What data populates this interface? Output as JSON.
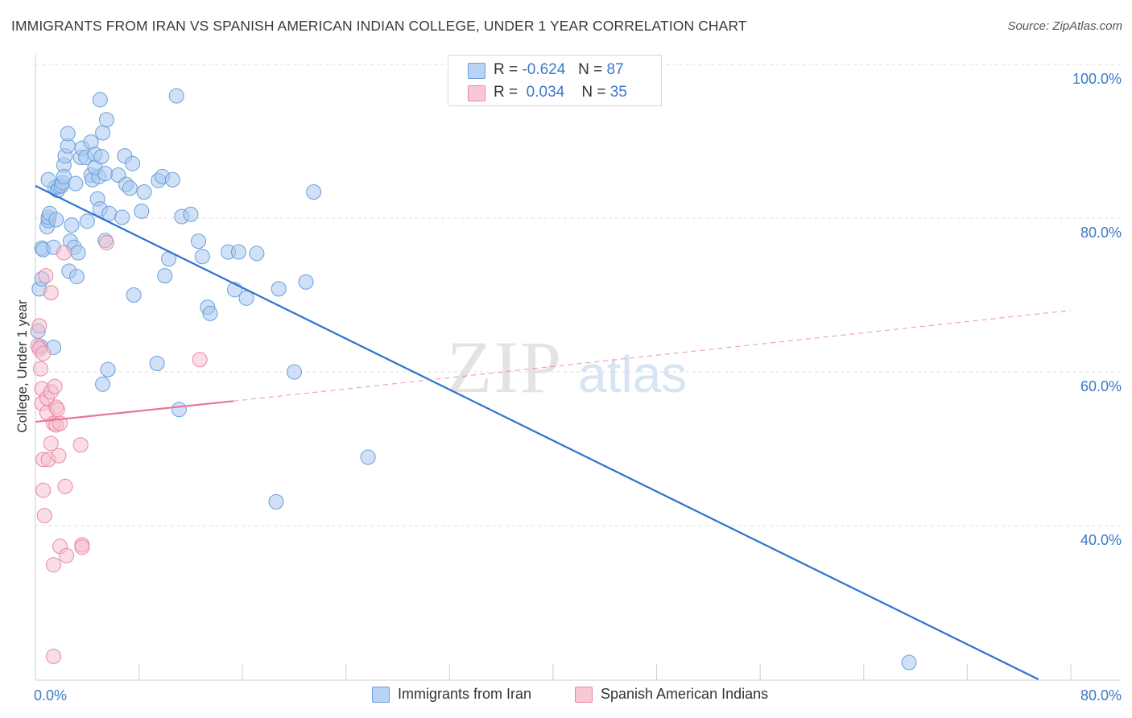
{
  "header": {
    "title": "IMMIGRANTS FROM IRAN VS SPANISH AMERICAN INDIAN COLLEGE, UNDER 1 YEAR CORRELATION CHART",
    "source": "Source: ZipAtlas.com"
  },
  "legend": {
    "series1": {
      "r_label": "R =",
      "r_value": "-0.624",
      "n_label": "N =",
      "n_value": "87"
    },
    "series2": {
      "r_label": "R =",
      "r_value": "0.034",
      "n_label": "N =",
      "n_value": "35"
    }
  },
  "colors": {
    "blue_fill": "#a9c8f0",
    "blue_stroke": "#6a9fd8",
    "blue_line": "#2d74d0",
    "pink_fill": "#f6bccd",
    "pink_stroke": "#e8899f",
    "pink_line": "#e8749a",
    "tick_label": "#3a78c9",
    "grid": "#dddddd"
  },
  "watermark": {
    "zip": "ZIP",
    "atlas": "atlas"
  },
  "chart_data": {
    "type": "scatter",
    "title": "IMMIGRANTS FROM IRAN VS SPANISH AMERICAN INDIAN COLLEGE, UNDER 1 YEAR CORRELATION CHART",
    "xlabel": "",
    "ylabel": "College, Under 1 year",
    "xlim": [
      0,
      80
    ],
    "ylim": [
      20,
      102
    ],
    "x_tick_labels": [
      "0.0%",
      "80.0%"
    ],
    "y_ticks": [
      40,
      60,
      80,
      100
    ],
    "y_tick_labels": [
      "40.0%",
      "60.0%",
      "80.0%",
      "100.0%"
    ],
    "grid": true,
    "legend_position": "top-center",
    "series": [
      {
        "name": "Immigrants from Iran",
        "color": "#a9c8f0",
        "R": -0.624,
        "N": 87,
        "trend": {
          "x": [
            0,
            77.5
          ],
          "y": [
            84.2,
            20
          ]
        },
        "points": [
          [
            0.2,
            65.3
          ],
          [
            0.4,
            63.3
          ],
          [
            0.3,
            70.8
          ],
          [
            0.5,
            72.1
          ],
          [
            0.5,
            76.1
          ],
          [
            0.6,
            75.9
          ],
          [
            0.9,
            78.9
          ],
          [
            1.0,
            79.7
          ],
          [
            1.0,
            80.1
          ],
          [
            1.1,
            80.6
          ],
          [
            1.4,
            76.2
          ],
          [
            1.5,
            84.0
          ],
          [
            1.7,
            83.6
          ],
          [
            1.8,
            84.1
          ],
          [
            1.4,
            63.2
          ],
          [
            1.6,
            79.8
          ],
          [
            2.0,
            84.2
          ],
          [
            2.1,
            84.6
          ],
          [
            2.2,
            86.9
          ],
          [
            2.3,
            88.1
          ],
          [
            2.2,
            85.4
          ],
          [
            2.5,
            89.4
          ],
          [
            2.7,
            77.0
          ],
          [
            2.6,
            73.1
          ],
          [
            2.8,
            79.1
          ],
          [
            3.0,
            76.2
          ],
          [
            3.1,
            84.5
          ],
          [
            3.2,
            72.4
          ],
          [
            3.3,
            75.5
          ],
          [
            3.5,
            87.9
          ],
          [
            3.6,
            89.1
          ],
          [
            3.9,
            87.9
          ],
          [
            4.0,
            79.6
          ],
          [
            4.3,
            89.9
          ],
          [
            4.3,
            85.6
          ],
          [
            4.4,
            85.0
          ],
          [
            4.6,
            88.3
          ],
          [
            4.8,
            82.5
          ],
          [
            4.9,
            85.4
          ],
          [
            4.6,
            86.6
          ],
          [
            5.0,
            81.2
          ],
          [
            5.1,
            88.0
          ],
          [
            5.0,
            95.4
          ],
          [
            5.2,
            91.1
          ],
          [
            5.5,
            92.8
          ],
          [
            5.4,
            77.1
          ],
          [
            5.4,
            85.8
          ],
          [
            5.2,
            58.4
          ],
          [
            5.7,
            80.6
          ],
          [
            5.6,
            60.3
          ],
          [
            6.4,
            85.6
          ],
          [
            6.7,
            80.1
          ],
          [
            7.0,
            84.4
          ],
          [
            6.9,
            88.1
          ],
          [
            7.5,
            87.1
          ],
          [
            7.3,
            83.9
          ],
          [
            7.6,
            70.0
          ],
          [
            8.2,
            80.9
          ],
          [
            8.4,
            83.4
          ],
          [
            9.4,
            61.1
          ],
          [
            9.5,
            84.9
          ],
          [
            9.8,
            85.4
          ],
          [
            10.0,
            72.5
          ],
          [
            10.3,
            74.7
          ],
          [
            10.6,
            85.0
          ],
          [
            10.9,
            95.9
          ],
          [
            11.1,
            55.1
          ],
          [
            11.3,
            80.2
          ],
          [
            12.0,
            80.5
          ],
          [
            12.6,
            77.0
          ],
          [
            12.9,
            75.0
          ],
          [
            13.3,
            68.4
          ],
          [
            13.5,
            67.6
          ],
          [
            14.9,
            75.6
          ],
          [
            15.4,
            70.7
          ],
          [
            15.7,
            75.6
          ],
          [
            16.3,
            69.6
          ],
          [
            17.1,
            75.4
          ],
          [
            18.8,
            70.8
          ],
          [
            18.6,
            43.1
          ],
          [
            20.0,
            60.0
          ],
          [
            20.9,
            71.7
          ],
          [
            21.5,
            83.4
          ],
          [
            25.7,
            48.9
          ],
          [
            67.5,
            22.2
          ],
          [
            1.0,
            85.0
          ],
          [
            2.5,
            91.0
          ]
        ]
      },
      {
        "name": "Spanish American Indians",
        "color": "#f6bccd",
        "R": 0.034,
        "N": 35,
        "trend_solid": {
          "x": [
            0,
            15.3
          ],
          "y": [
            53.5,
            56.2
          ]
        },
        "trend_dashed": {
          "x": [
            15.3,
            80
          ],
          "y": [
            56.2,
            68.0
          ]
        },
        "points": [
          [
            0.2,
            63.4
          ],
          [
            0.3,
            63.0
          ],
          [
            0.3,
            66.0
          ],
          [
            0.4,
            60.4
          ],
          [
            0.5,
            57.8
          ],
          [
            0.5,
            55.9
          ],
          [
            0.6,
            62.4
          ],
          [
            0.6,
            48.6
          ],
          [
            0.6,
            44.6
          ],
          [
            0.7,
            41.3
          ],
          [
            0.8,
            72.5
          ],
          [
            0.9,
            56.6
          ],
          [
            0.9,
            54.7
          ],
          [
            1.0,
            48.6
          ],
          [
            1.2,
            70.3
          ],
          [
            1.2,
            57.4
          ],
          [
            1.2,
            50.7
          ],
          [
            1.4,
            53.3
          ],
          [
            1.5,
            58.1
          ],
          [
            1.6,
            55.4
          ],
          [
            1.6,
            53.1
          ],
          [
            1.7,
            55.1
          ],
          [
            1.8,
            49.1
          ],
          [
            1.9,
            53.3
          ],
          [
            1.9,
            37.3
          ],
          [
            2.2,
            75.5
          ],
          [
            2.3,
            45.1
          ],
          [
            2.4,
            36.1
          ],
          [
            3.5,
            50.5
          ],
          [
            3.6,
            37.5
          ],
          [
            3.6,
            37.2
          ],
          [
            5.5,
            76.8
          ],
          [
            12.7,
            61.6
          ],
          [
            1.4,
            34.9
          ],
          [
            1.4,
            23.0
          ]
        ]
      }
    ]
  },
  "bottom_legend": {
    "item1": "Immigrants from Iran",
    "item2": "Spanish American Indians"
  }
}
